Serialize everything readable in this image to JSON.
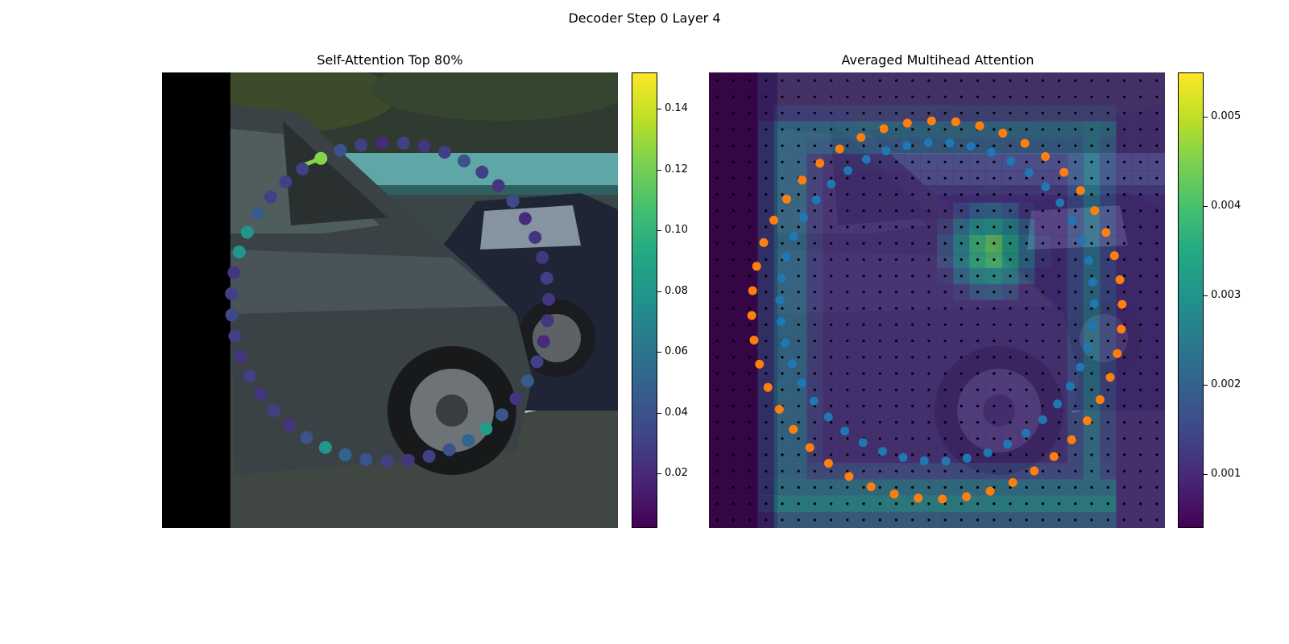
{
  "figure": {
    "suptitle": "Decoder Step 0 Layer 4"
  },
  "colors": {
    "viridis_low": "#440154",
    "viridis_mid": "#21918c",
    "viridis_high": "#fde725",
    "tab_blue": "#1f77b4",
    "tab_orange": "#ff7f0e"
  },
  "chart_data": [
    {
      "type": "scatter",
      "title": "Self-Attention Top 80%",
      "background": "camera image of a dark sedan parked on a street",
      "colorbar": {
        "cmap": "viridis",
        "range": [
          0.002,
          0.152
        ],
        "ticks": [
          0.02,
          0.04,
          0.06,
          0.08,
          0.1,
          0.12,
          0.14
        ],
        "tick_labels": [
          "0.02",
          "0.04",
          "0.06",
          "0.08",
          "0.10",
          "0.12",
          "0.14"
        ]
      },
      "query_point_value": 0.125,
      "points_values": [
        0.125,
        0.04,
        0.03,
        0.02,
        0.03,
        0.025,
        0.03,
        0.04,
        0.03,
        0.025,
        0.035,
        0.02,
        0.025,
        0.025,
        0.03,
        0.025,
        0.025,
        0.02,
        0.03,
        0.045,
        0.025,
        0.04,
        0.085,
        0.05,
        0.04,
        0.03,
        0.025,
        0.03,
        0.04,
        0.05,
        0.08,
        0.04,
        0.025,
        0.03,
        0.025,
        0.03,
        0.025,
        0.03,
        0.035,
        0.03,
        0.025,
        0.08,
        0.08,
        0.045,
        0.03,
        0.03,
        0.03
      ]
    },
    {
      "type": "heatmap",
      "title": "Averaged Multihead Attention",
      "background": "camera image of a dark sedan with attention heatmap overlay",
      "colorbar": {
        "cmap": "viridis",
        "range": [
          0.0004,
          0.0055
        ],
        "ticks": [
          0.001,
          0.002,
          0.003,
          0.004,
          0.005
        ],
        "tick_labels": [
          "0.001",
          "0.002",
          "0.003",
          "0.004",
          "0.005"
        ]
      },
      "grid": "28 x 28 sampling points",
      "series": [
        {
          "color": "tab:blue"
        },
        {
          "color": "tab:orange"
        }
      ]
    }
  ]
}
